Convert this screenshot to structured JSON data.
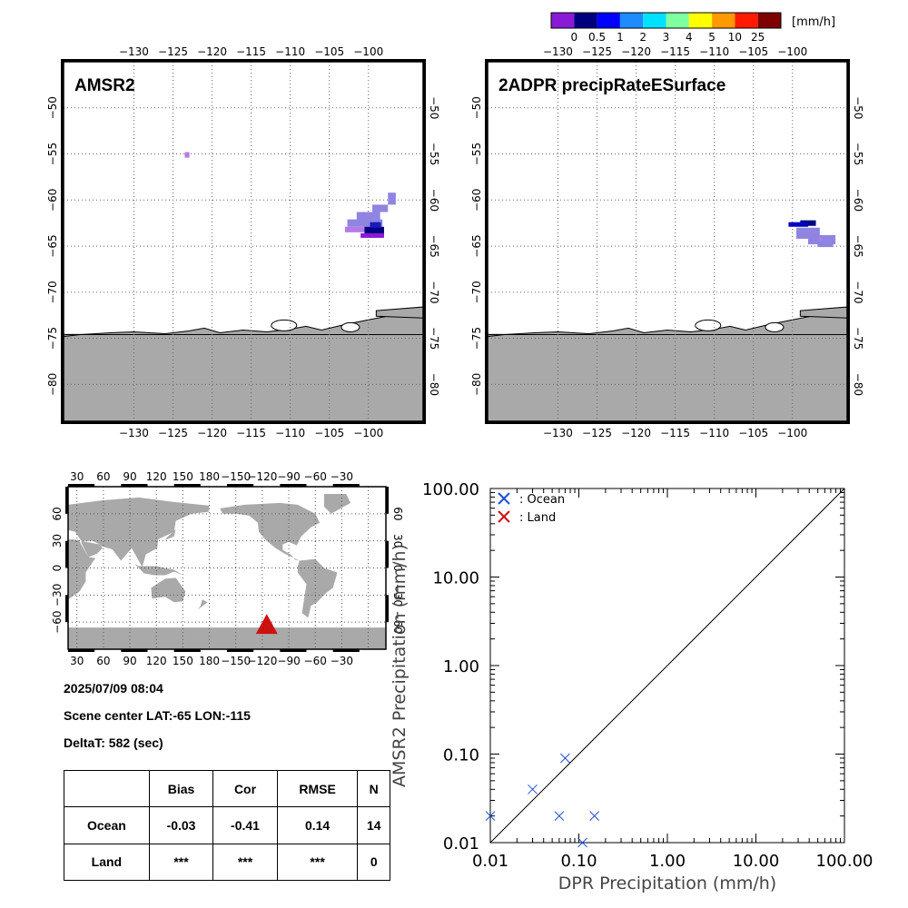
{
  "colorbar": {
    "unit": "[mm/h]",
    "labels": [
      "0",
      "0.5",
      "1",
      "2",
      "3",
      "4",
      "5",
      "10",
      "25"
    ],
    "colors": [
      "#8a1ad6",
      "#00007f",
      "#0000ff",
      "#1e8cff",
      "#00e1ff",
      "#7fffa0",
      "#ffff00",
      "#ff9900",
      "#ff1a00",
      "#7f0000"
    ]
  },
  "map_panels": [
    {
      "title": "AMSR2",
      "lon_ticks": [
        "−130",
        "−125",
        "−120",
        "−115",
        "−110",
        "−105",
        "−100"
      ],
      "lat_ticks": [
        "−50",
        "−55",
        "−60",
        "−65",
        "−70",
        "−75",
        "−80"
      ]
    },
    {
      "title": "2ADPR precipRateESurface",
      "lon_ticks": [
        "−130",
        "−125",
        "−120",
        "−115",
        "−110",
        "−105",
        "−100"
      ],
      "lat_ticks": [
        "−50",
        "−55",
        "−60",
        "−65",
        "−70",
        "−75",
        "−80"
      ]
    }
  ],
  "globe": {
    "top_ticks": [
      "30",
      "60",
      "90",
      "120",
      "150",
      "180",
      "−150",
      "−120",
      "−90",
      "−60",
      "−30"
    ],
    "bottom_ticks": [
      "30",
      "60",
      "90",
      "120",
      "150",
      "180",
      "−150",
      "−120",
      "−90",
      "−60",
      "−30"
    ],
    "lat_ticks": [
      "60",
      "30",
      "0",
      "−30",
      "−60"
    ],
    "marker_color": "#cc1111"
  },
  "info": {
    "datetime": "2025/07/09 08:04",
    "scene_center": "Scene center LAT:-65   LON:-115",
    "delta_t": "DeltaT:  582 (sec)"
  },
  "stats_table": {
    "headers": [
      "",
      "Bias",
      "Cor",
      "RMSE",
      "N"
    ],
    "rows": [
      [
        "Ocean",
        "-0.03",
        "-0.41",
        "0.14",
        "14"
      ],
      [
        "Land",
        "***",
        "***",
        "***",
        "0"
      ]
    ]
  },
  "chart_data": {
    "type": "scatter",
    "xlabel": "DPR Precipitation (mm/h)",
    "ylabel": "AMSR2 Precipitation (mm/h)",
    "xscale": "log",
    "yscale": "log",
    "xlim": [
      0.01,
      100
    ],
    "ylim": [
      0.01,
      100
    ],
    "x_tick_labels": [
      "0.01",
      "0.10",
      "1.00",
      "10.00",
      "100.00"
    ],
    "y_tick_labels": [
      "0.01",
      "0.10",
      "1.00",
      "10.00",
      "100.00"
    ],
    "legend_position": "top-left",
    "series": [
      {
        "name": ": Ocean",
        "color": "#1f4fd6",
        "x": [
          0.01,
          0.03,
          0.06,
          0.07,
          0.11,
          0.15
        ],
        "y": [
          0.02,
          0.04,
          0.02,
          0.09,
          0.01,
          0.02
        ]
      },
      {
        "name": ": Land",
        "color": "#cc1111",
        "x": [],
        "y": []
      }
    ],
    "reference_line": "1:1"
  }
}
